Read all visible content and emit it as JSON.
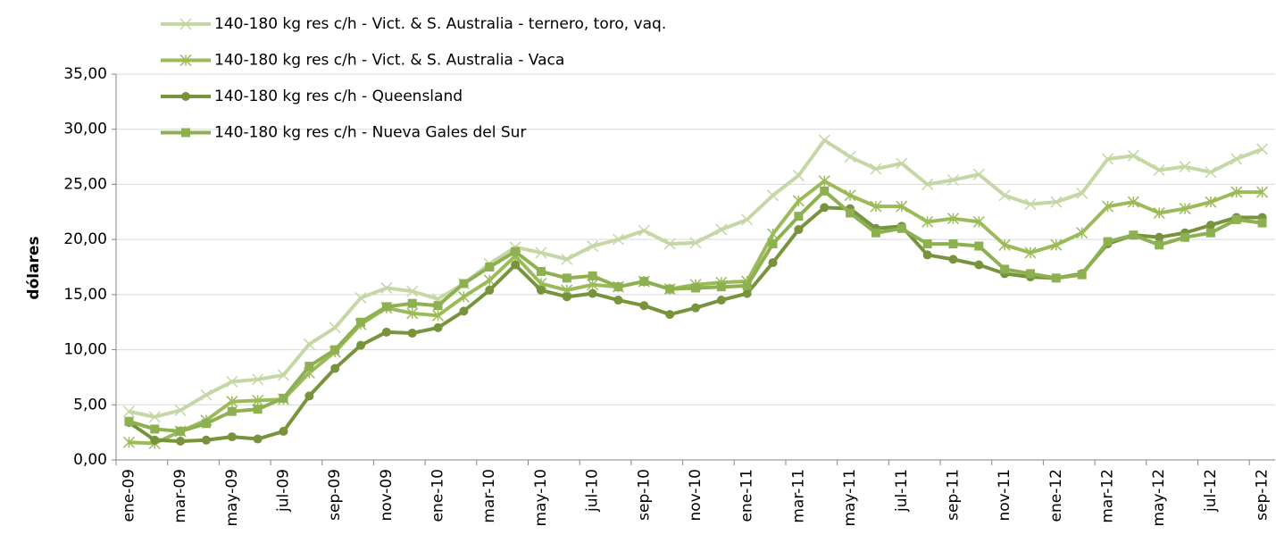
{
  "chart_data": {
    "type": "line",
    "ylabel": "dólares",
    "categories": [
      "ene-09",
      null,
      "mar-09",
      null,
      "may-09",
      null,
      "jul-09",
      null,
      "sep-09",
      null,
      "nov-09",
      null,
      "ene-10",
      null,
      "mar-10",
      null,
      "may-10",
      null,
      "jul-10",
      null,
      "sep-10",
      null,
      "nov-10",
      null,
      "ene-11",
      null,
      "mar-11",
      null,
      "may-11",
      null,
      "jul-11",
      null,
      "sep-11",
      null,
      "nov-11",
      null,
      "ene-12",
      null,
      "mar-12",
      null,
      "may-12",
      null,
      "jul-12",
      null,
      "sep-12"
    ],
    "series": [
      {
        "name": "140-180 kg res c/h - Vict. & S. Australia - ternero, toro, vaq.",
        "color": "#c4d7a4",
        "marker": "x",
        "values": [
          4.4,
          3.9,
          4.5,
          5.9,
          7.1,
          7.3,
          7.7,
          10.5,
          12.0,
          14.7,
          15.6,
          15.3,
          14.6,
          16.0,
          17.8,
          19.3,
          18.8,
          18.2,
          19.4,
          20.0,
          20.8,
          19.6,
          19.7,
          20.9,
          21.8,
          24.0,
          25.8,
          29.0,
          27.5,
          26.4,
          26.9,
          25.0,
          25.4,
          25.9,
          24.0,
          23.2,
          23.4,
          24.2,
          27.3,
          27.6,
          26.3,
          26.6,
          26.1,
          27.3,
          28.2
        ]
      },
      {
        "name": "140-180 kg res c/h - Vict. & S. Australia - Vaca",
        "color": "#9bbb59",
        "marker": "star",
        "values": [
          1.6,
          1.5,
          2.6,
          3.6,
          5.3,
          5.4,
          5.5,
          7.9,
          9.8,
          12.3,
          13.8,
          13.3,
          13.1,
          14.8,
          16.3,
          18.5,
          16.0,
          15.4,
          15.9,
          15.7,
          16.2,
          15.5,
          15.9,
          16.1,
          16.2,
          20.5,
          23.5,
          25.3,
          24.0,
          23.0,
          23.0,
          21.6,
          21.9,
          21.6,
          19.5,
          18.8,
          19.5,
          20.6,
          23.0,
          23.4,
          22.4,
          22.8,
          23.4,
          24.3,
          24.3
        ]
      },
      {
        "name": "140-180 kg res c/h - Queensland",
        "color": "#77933c",
        "marker": "circle",
        "values": [
          3.4,
          1.8,
          1.7,
          1.8,
          2.1,
          1.9,
          2.6,
          5.8,
          8.3,
          10.4,
          11.6,
          11.5,
          12.0,
          13.5,
          15.4,
          17.7,
          15.4,
          14.8,
          15.1,
          14.5,
          14.0,
          13.2,
          13.8,
          14.5,
          15.1,
          17.9,
          20.9,
          22.9,
          22.8,
          21.0,
          21.2,
          18.6,
          18.2,
          17.7,
          16.9,
          16.6,
          16.5,
          16.9,
          19.6,
          20.4,
          20.2,
          20.6,
          21.3,
          22.0,
          22.0
        ]
      },
      {
        "name": "140-180 kg res c/h - Nueva Gales del Sur",
        "color": "#8db050",
        "marker": "square",
        "values": [
          3.5,
          2.8,
          2.6,
          3.3,
          4.4,
          4.6,
          5.6,
          8.5,
          10.0,
          12.5,
          13.9,
          14.2,
          14.0,
          16.0,
          17.5,
          18.9,
          17.1,
          16.5,
          16.7,
          15.7,
          16.2,
          15.5,
          15.6,
          15.7,
          15.8,
          19.6,
          22.1,
          24.4,
          22.4,
          20.6,
          21.0,
          19.6,
          19.6,
          19.4,
          17.3,
          16.9,
          16.5,
          16.8,
          19.8,
          20.4,
          19.5,
          20.2,
          20.6,
          21.8,
          21.5
        ]
      }
    ],
    "ylim": [
      0,
      35
    ],
    "yticks": [
      {
        "value": 0,
        "label": "0,00"
      },
      {
        "value": 5,
        "label": "5,00"
      },
      {
        "value": 10,
        "label": "10,00"
      },
      {
        "value": 15,
        "label": "15,00"
      },
      {
        "value": 20,
        "label": "20,00"
      },
      {
        "value": 25,
        "label": "25,00"
      },
      {
        "value": 30,
        "label": "30,00"
      },
      {
        "value": 35,
        "label": "35,00"
      }
    ],
    "grid": true,
    "legend": "top-left"
  }
}
